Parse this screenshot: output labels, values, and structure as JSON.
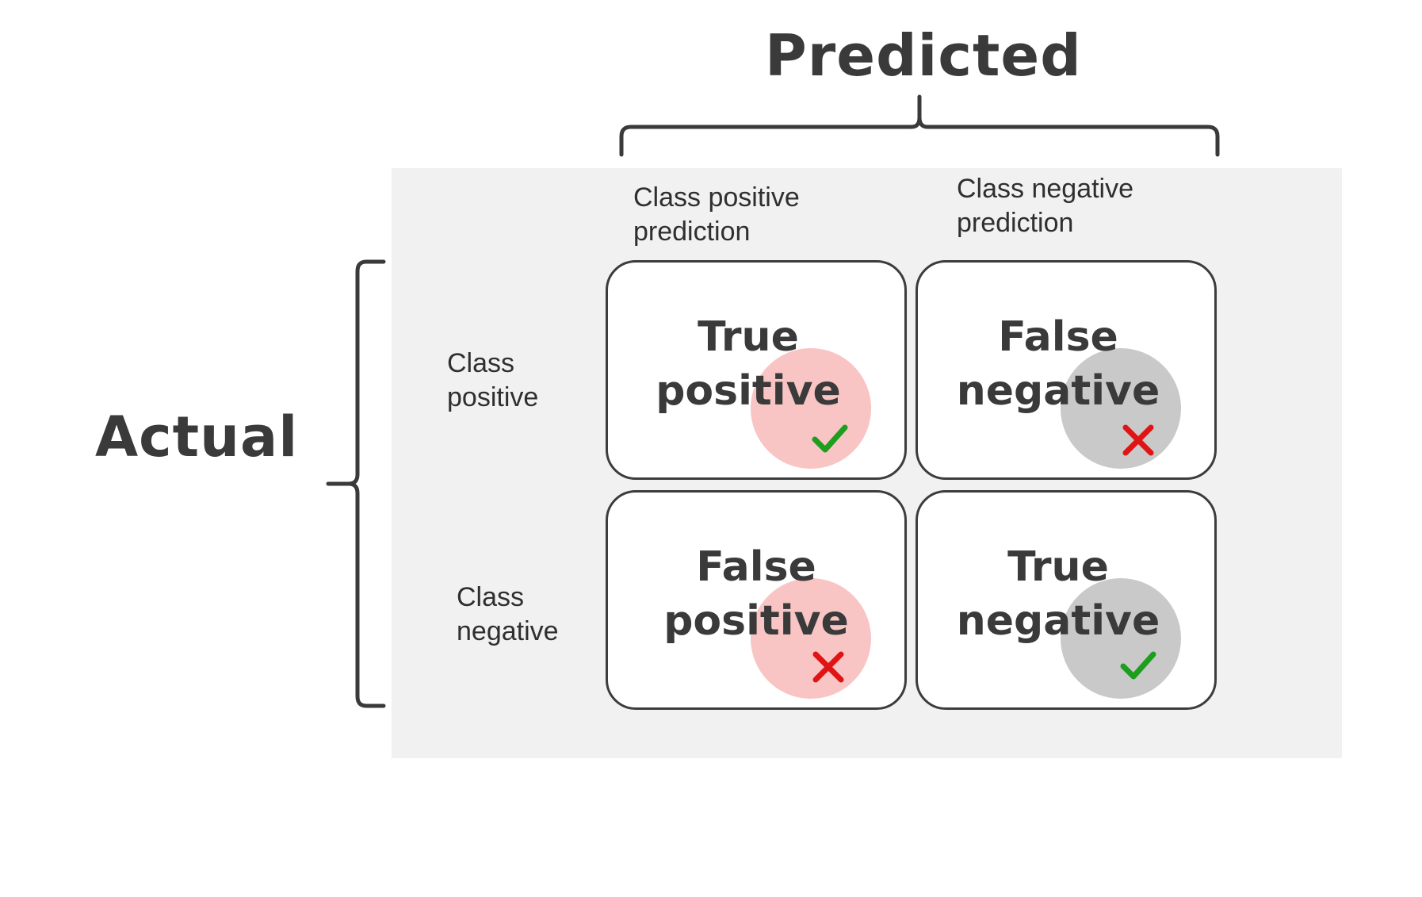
{
  "diagram": {
    "predicted_label": "Predicted",
    "actual_label": "Actual",
    "columns": [
      {
        "line1": "Class positive",
        "line2": "prediction"
      },
      {
        "line1": "Class negative",
        "line2": "prediction"
      }
    ],
    "rows": [
      {
        "line1": "Class",
        "line2": "positive"
      },
      {
        "line1": "Class",
        "line2": "negative"
      }
    ],
    "cells": [
      {
        "line1": "True",
        "line2": "positive",
        "circle_color": "#f8c4c4",
        "mark": "check-icon",
        "mark_color": "#1e9e1e"
      },
      {
        "line1": "False",
        "line2": "negative",
        "circle_color": "#c9c9c9",
        "mark": "cross-icon",
        "mark_color": "#e01414"
      },
      {
        "line1": "False",
        "line2": "positive",
        "circle_color": "#f8c4c4",
        "mark": "cross-icon",
        "mark_color": "#e01414"
      },
      {
        "line1": "True",
        "line2": "negative",
        "circle_color": "#c9c9c9",
        "mark": "check-icon",
        "mark_color": "#1e9e1e"
      }
    ]
  },
  "colors": {
    "panel_background": "#f1f1f1",
    "border": "#3c3c3c",
    "text_dark": "#3a3a3a"
  }
}
